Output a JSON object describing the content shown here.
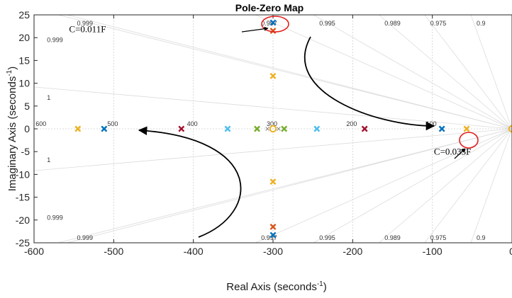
{
  "chart_data": {
    "type": "scatter",
    "title": "Pole-Zero Map",
    "xlabel": "Real Axis (seconds",
    "ylabel": "Imaginary Axis (seconds",
    "unit_exponent": "-1",
    "xlim": [
      -600,
      0
    ],
    "ylim": [
      -25,
      25
    ],
    "x_ticks": [
      -600,
      -500,
      -400,
      -300,
      -200,
      -100,
      0
    ],
    "x_tick_labels": [
      "-600",
      "-500",
      "-400",
      "-300",
      "-200",
      "-100",
      "0"
    ],
    "y_ticks": [
      25,
      20,
      15,
      10,
      5,
      0,
      -5,
      -10,
      -15,
      -20,
      -25
    ],
    "y_tick_labels": [
      "25",
      "20",
      "15",
      "10",
      "5",
      "0",
      "-5",
      "-10",
      "-15",
      "-20",
      "-25"
    ],
    "grid": true,
    "damping_lines": [
      {
        "zeta": 0.999,
        "label": "0.999"
      },
      {
        "zeta": 0.997,
        "label": "0.997"
      },
      {
        "zeta": 0.995,
        "label": "0.995"
      },
      {
        "zeta": 0.989,
        "label": "0.989"
      },
      {
        "zeta": 0.975,
        "label": "0.975"
      },
      {
        "zeta": 0.9,
        "label": "0.9"
      }
    ],
    "edge_labels": [
      {
        "label": "0.999",
        "x": -598,
        "y": 19.5
      },
      {
        "label": "1",
        "x": -598,
        "y": 6.8
      },
      {
        "label": "1",
        "x": -598,
        "y": -6.8
      },
      {
        "label": "0.999",
        "x": -598,
        "y": -19.5
      }
    ],
    "frequency_labels": [
      {
        "label": "600",
        "x": -598
      },
      {
        "label": "500",
        "x": -508
      },
      {
        "label": "400",
        "x": -408
      },
      {
        "label": "300",
        "x": -308
      },
      {
        "label": "200",
        "x": -208
      },
      {
        "label": "100",
        "x": -108
      }
    ],
    "poles": [
      {
        "x": -545,
        "y": 0,
        "color": "#EDB120"
      },
      {
        "x": -512,
        "y": 0,
        "color": "#0072BD"
      },
      {
        "x": -415,
        "y": 0,
        "color": "#A2142F"
      },
      {
        "x": -357,
        "y": 0,
        "color": "#4DBEEE"
      },
      {
        "x": -320,
        "y": 0,
        "color": "#77AC30"
      },
      {
        "x": -286,
        "y": 0,
        "color": "#77AC30"
      },
      {
        "x": -245,
        "y": 0,
        "color": "#4DBEEE"
      },
      {
        "x": -185,
        "y": 0,
        "color": "#A2142F"
      },
      {
        "x": -88,
        "y": 0,
        "color": "#0072BD"
      },
      {
        "x": -57,
        "y": 0,
        "color": "#EDB120"
      },
      {
        "x": -300,
        "y": 23.3,
        "color": "#0072BD"
      },
      {
        "x": -300,
        "y": -23.3,
        "color": "#0072BD"
      },
      {
        "x": -300,
        "y": 21.5,
        "color": "#D95319"
      },
      {
        "x": -300,
        "y": -21.5,
        "color": "#D95319"
      },
      {
        "x": -300,
        "y": 11.6,
        "color": "#EDB120"
      },
      {
        "x": -300,
        "y": -11.6,
        "color": "#EDB120"
      },
      {
        "x": -307,
        "y": 0,
        "color": "#888888"
      },
      {
        "x": -293,
        "y": 0,
        "color": "#888888"
      }
    ],
    "zeros": [
      {
        "x": -300,
        "y": 0,
        "color": "#EDB120"
      },
      {
        "x": 0,
        "y": 0,
        "color": "#EDB120"
      }
    ],
    "annotations": [
      {
        "text": "C=0.011F",
        "x": -556,
        "y": 21.2
      },
      {
        "text": "C=0.033F",
        "x": -98,
        "y": -5.7
      }
    ]
  }
}
